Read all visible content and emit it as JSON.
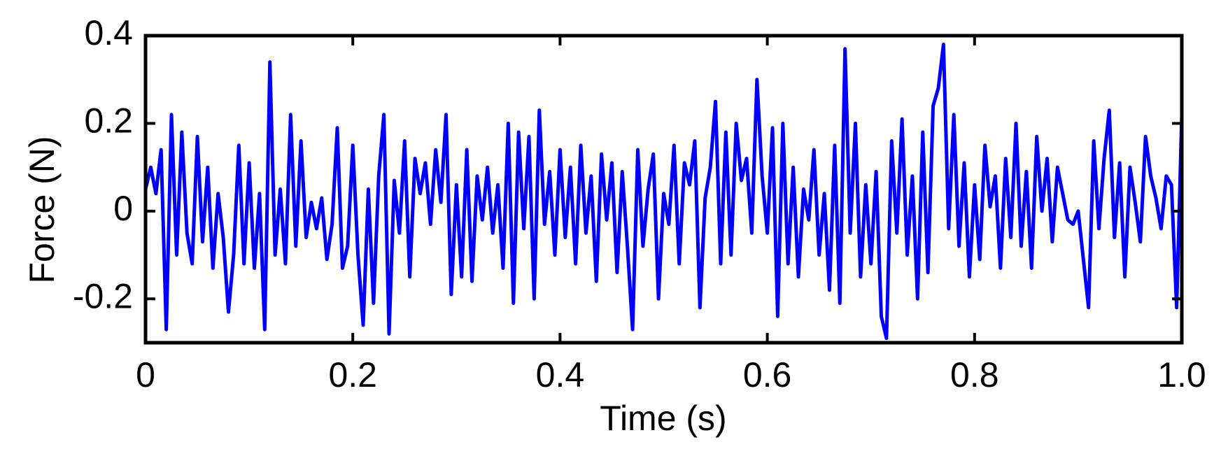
{
  "chart_data": {
    "type": "line",
    "xlabel": "Time (s)",
    "ylabel": "Force (N)",
    "x": [
      0,
      0.005,
      0.01,
      0.015,
      0.02,
      0.025,
      0.03,
      0.035,
      0.04,
      0.045,
      0.05,
      0.055,
      0.06,
      0.065,
      0.07,
      0.075,
      0.08,
      0.085,
      0.09,
      0.095,
      0.1,
      0.105,
      0.11,
      0.115,
      0.12,
      0.125,
      0.13,
      0.135,
      0.14,
      0.145,
      0.15,
      0.155,
      0.16,
      0.165,
      0.17,
      0.175,
      0.18,
      0.185,
      0.19,
      0.195,
      0.2,
      0.205,
      0.21,
      0.215,
      0.22,
      0.225,
      0.23,
      0.235,
      0.24,
      0.245,
      0.25,
      0.255,
      0.26,
      0.265,
      0.27,
      0.275,
      0.28,
      0.285,
      0.29,
      0.295,
      0.3,
      0.305,
      0.31,
      0.315,
      0.32,
      0.325,
      0.33,
      0.335,
      0.34,
      0.345,
      0.35,
      0.355,
      0.36,
      0.365,
      0.37,
      0.375,
      0.38,
      0.385,
      0.39,
      0.395,
      0.4,
      0.405,
      0.41,
      0.415,
      0.42,
      0.425,
      0.43,
      0.435,
      0.44,
      0.445,
      0.45,
      0.455,
      0.46,
      0.465,
      0.47,
      0.475,
      0.48,
      0.485,
      0.49,
      0.495,
      0.5,
      0.505,
      0.51,
      0.515,
      0.52,
      0.525,
      0.53,
      0.535,
      0.54,
      0.545,
      0.55,
      0.555,
      0.56,
      0.565,
      0.57,
      0.575,
      0.58,
      0.585,
      0.59,
      0.595,
      0.6,
      0.605,
      0.61,
      0.615,
      0.62,
      0.625,
      0.63,
      0.635,
      0.64,
      0.645,
      0.65,
      0.655,
      0.66,
      0.665,
      0.67,
      0.675,
      0.68,
      0.685,
      0.69,
      0.695,
      0.7,
      0.705,
      0.71,
      0.715,
      0.72,
      0.725,
      0.73,
      0.735,
      0.74,
      0.745,
      0.75,
      0.755,
      0.76,
      0.765,
      0.77,
      0.775,
      0.78,
      0.785,
      0.79,
      0.795,
      0.8,
      0.805,
      0.81,
      0.815,
      0.82,
      0.825,
      0.83,
      0.835,
      0.84,
      0.845,
      0.85,
      0.855,
      0.86,
      0.865,
      0.87,
      0.875,
      0.88,
      0.885,
      0.89,
      0.895,
      0.9,
      0.905,
      0.91,
      0.915,
      0.92,
      0.925,
      0.93,
      0.935,
      0.94,
      0.945,
      0.95,
      0.955,
      0.96,
      0.965,
      0.97,
      0.975,
      0.98,
      0.985,
      0.99,
      0.995,
      1
    ],
    "series": [
      {
        "color": "#0000ff",
        "values": [
          0.05,
          0.1,
          0.04,
          0.14,
          -0.27,
          0.22,
          -0.1,
          0.18,
          -0.05,
          -0.12,
          0.17,
          -0.07,
          0.1,
          -0.13,
          0.04,
          -0.06,
          -0.23,
          -0.1,
          0.15,
          -0.12,
          0.11,
          -0.13,
          0.04,
          -0.27,
          0.34,
          -0.1,
          0.05,
          -0.12,
          0.22,
          -0.08,
          0.16,
          -0.06,
          0.02,
          -0.04,
          0.03,
          -0.11,
          -0.03,
          0.19,
          -0.13,
          -0.08,
          0.15,
          -0.1,
          -0.26,
          0.05,
          -0.21,
          0.08,
          0.22,
          -0.28,
          0.07,
          -0.05,
          0.16,
          -0.15,
          0.12,
          0.04,
          0.11,
          -0.03,
          0.14,
          0.02,
          0.22,
          -0.19,
          0.06,
          -0.15,
          0.14,
          -0.16,
          0.08,
          -0.02,
          0.1,
          -0.05,
          0.06,
          -0.13,
          0.2,
          -0.21,
          0.18,
          -0.04,
          0.17,
          -0.2,
          0.23,
          -0.03,
          0.09,
          -0.1,
          0.14,
          -0.06,
          0.1,
          -0.12,
          0.15,
          -0.05,
          0.08,
          -0.16,
          0.13,
          -0.02,
          0.11,
          -0.14,
          0.09,
          -0.08,
          -0.27,
          0.14,
          -0.08,
          0.05,
          0.13,
          -0.2,
          0.04,
          -0.03,
          0.15,
          -0.12,
          0.11,
          0.06,
          0.16,
          -0.22,
          0.03,
          0.1,
          0.25,
          -0.12,
          0.18,
          -0.1,
          0.2,
          0.07,
          0.12,
          -0.05,
          0.3,
          0.08,
          -0.05,
          0.19,
          -0.24,
          0.2,
          -0.12,
          0.1,
          -0.15,
          0.05,
          -0.02,
          0.14,
          -0.1,
          0.04,
          -0.18,
          0.15,
          -0.21,
          0.37,
          -0.05,
          0.2,
          -0.15,
          0.06,
          -0.12,
          0.09,
          -0.24,
          -0.29,
          0.16,
          -0.05,
          0.21,
          -0.1,
          0.08,
          -0.2,
          0.18,
          -0.14,
          0.24,
          0.28,
          0.38,
          -0.04,
          0.22,
          -0.08,
          0.11,
          -0.15,
          0.06,
          -0.11,
          0.15,
          0.01,
          0.08,
          -0.13,
          0.12,
          -0.06,
          0.2,
          -0.08,
          0.09,
          -0.13,
          0.17,
          0.0,
          0.12,
          -0.07,
          0.1,
          0.04,
          -0.02,
          -0.03,
          0.0,
          -0.11,
          -0.22,
          0.16,
          -0.04,
          0.12,
          0.23,
          -0.06,
          0.11,
          -0.15,
          0.1,
          0.02,
          -0.07,
          0.17,
          0.08,
          0.03,
          -0.04,
          0.08,
          0.06,
          -0.22,
          0.22
        ]
      }
    ],
    "xlim": [
      0,
      1
    ],
    "xticks": [
      0,
      0.2,
      0.4,
      0.6,
      0.8,
      {
        "value": 1,
        "label": "1.0"
      }
    ],
    "ylim": [
      -0.3,
      0.4
    ],
    "yticks": [
      -0.2,
      0,
      0.2,
      0.4
    ]
  }
}
